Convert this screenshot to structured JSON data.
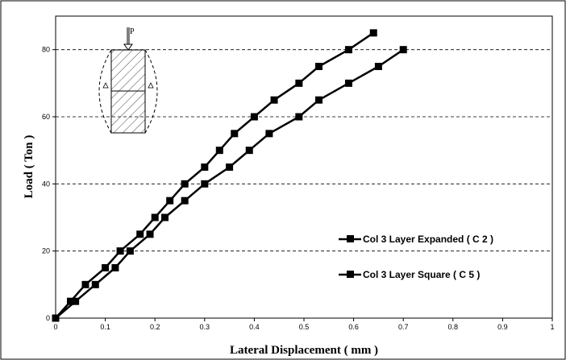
{
  "chart_data": {
    "type": "line",
    "title": "",
    "xlabel": "Lateral Displacement ( mm )",
    "ylabel": "Load ( Ton )",
    "xlim": [
      0,
      1
    ],
    "ylim": [
      0,
      90
    ],
    "x_ticks": [
      "0",
      "0.1",
      "0.2",
      "0.3",
      "0.4",
      "0.5",
      "0.6",
      "0.7",
      "0.8",
      "0.9",
      "1"
    ],
    "y_ticks": [
      "0",
      "20",
      "40",
      "60",
      "80"
    ],
    "grid": "horizontal dashed",
    "legend_position": "right",
    "series": [
      {
        "name": "Col 3 Layer Expanded ( C 2 )",
        "x": [
          0,
          0.03,
          0.06,
          0.1,
          0.13,
          0.17,
          0.2,
          0.23,
          0.26,
          0.3,
          0.33,
          0.36,
          0.4,
          0.44,
          0.49,
          0.53,
          0.59,
          0.64
        ],
        "y": [
          0,
          5,
          10,
          15,
          20,
          25,
          30,
          35,
          40,
          45,
          50,
          55,
          60,
          65,
          70,
          75,
          80,
          85
        ],
        "color": "#000000"
      },
      {
        "name": "Col 3 Layer Square ( C 5 )",
        "x": [
          0,
          0.04,
          0.08,
          0.12,
          0.15,
          0.19,
          0.22,
          0.26,
          0.3,
          0.35,
          0.39,
          0.43,
          0.49,
          0.53,
          0.59,
          0.65,
          0.7
        ],
        "y": [
          0,
          5,
          10,
          15,
          20,
          25,
          30,
          35,
          40,
          45,
          50,
          55,
          60,
          65,
          70,
          75,
          80
        ],
        "color": "#000000"
      }
    ],
    "inset": {
      "load_label": "P"
    }
  }
}
